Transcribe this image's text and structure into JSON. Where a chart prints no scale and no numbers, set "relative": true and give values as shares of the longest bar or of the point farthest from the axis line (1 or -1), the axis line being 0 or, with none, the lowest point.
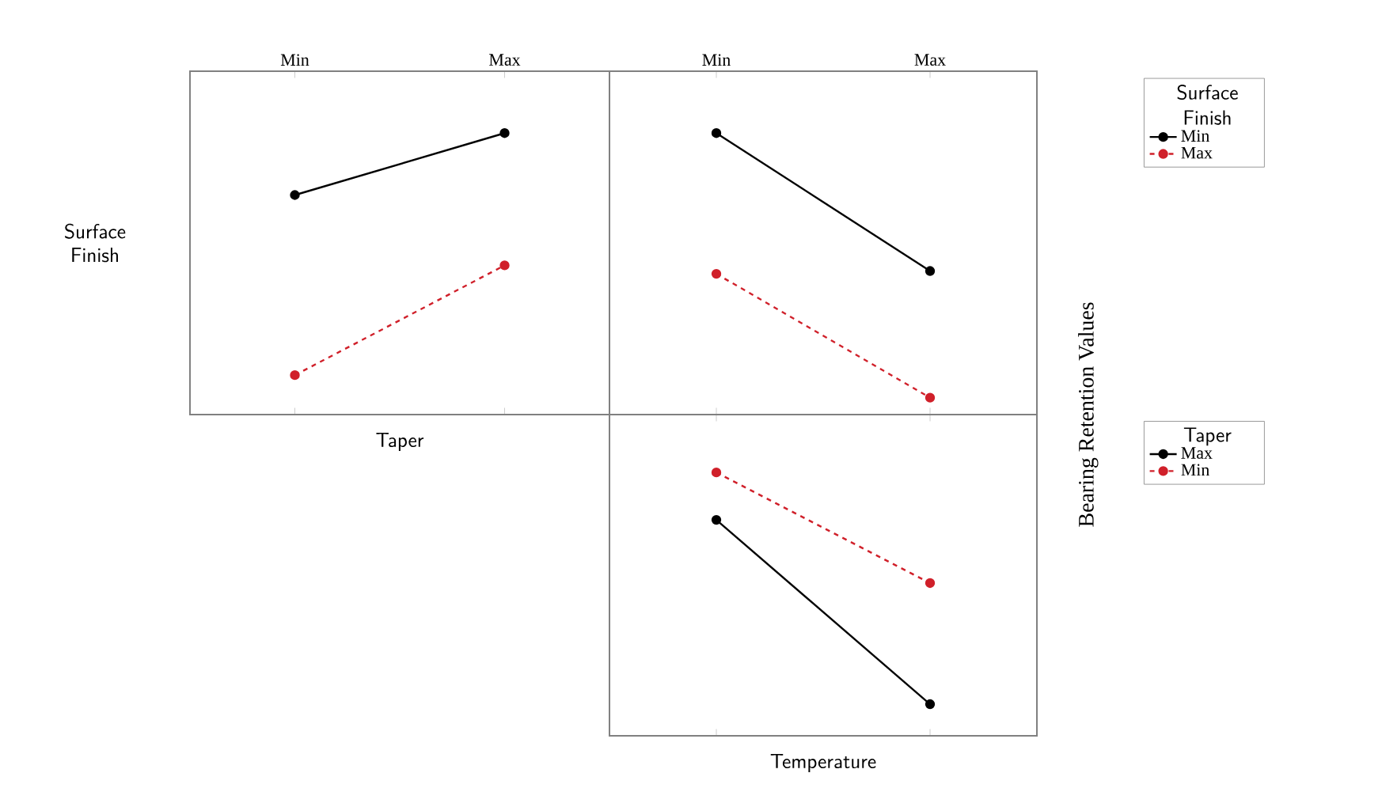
{
  "chart_data": [
    {
      "type": "line",
      "relative": true,
      "xlabel": "Taper",
      "ylabel": "Surface Finish",
      "categories": [
        "Min",
        "Max"
      ],
      "tick_labels": "x",
      "marker": "circle",
      "series": [
        {
          "color": "#000000",
          "line_style": "solid",
          "values": [
            0.78,
            1
          ]
        },
        {
          "color": "#d0202a",
          "line_style": "dashed",
          "values": [
            0.14,
            0.53
          ]
        }
      ]
    },
    {
      "type": "line",
      "relative": true,
      "ylabel": "Bearing Retention Values",
      "categories": [
        "Min",
        "Max"
      ],
      "tick_labels": "x",
      "marker": "circle",
      "legend": "right",
      "legend_title": "Surface Finish",
      "series": [
        {
          "name": "Min",
          "color": "#000000",
          "line_style": "solid",
          "values": [
            1,
            0.51
          ]
        },
        {
          "name": "Max",
          "color": "#d0202a",
          "line_style": "dashed",
          "values": [
            0.5,
            0.06
          ]
        }
      ]
    },
    {
      "type": "line",
      "relative": true,
      "xlabel": "Temperature",
      "categories": [
        null,
        null
      ],
      "tick_labels": false,
      "marker": "circle",
      "legend": "right",
      "legend_title": "Taper",
      "series": [
        {
          "name": "Max",
          "color": "#000000",
          "line_style": "solid",
          "values": [
            0.82,
            0.12
          ]
        },
        {
          "name": "Min",
          "color": "#d0202a",
          "line_style": "dashed",
          "values": [
            1,
            0.58
          ]
        }
      ]
    }
  ]
}
